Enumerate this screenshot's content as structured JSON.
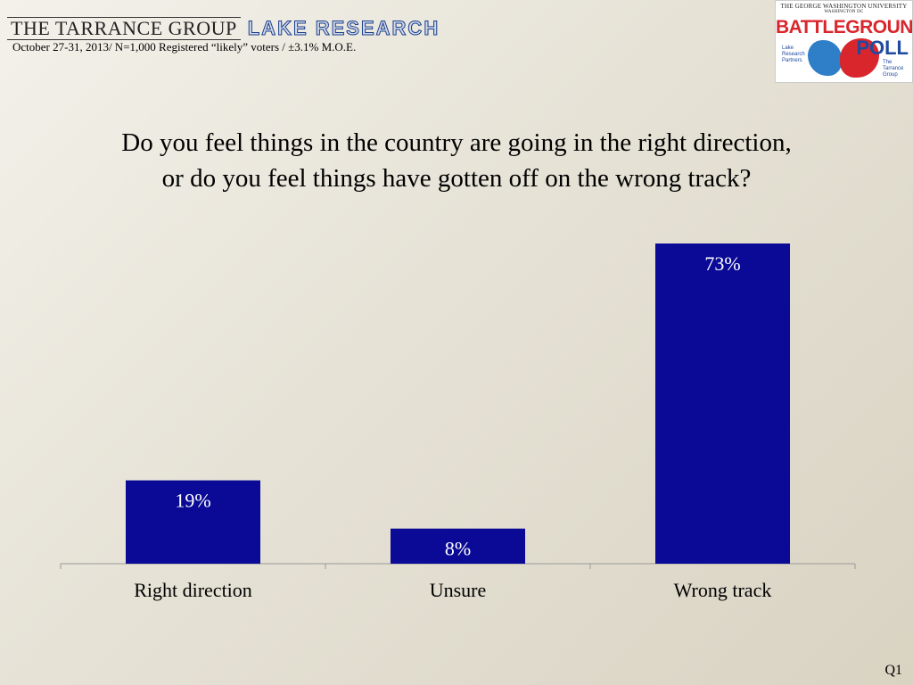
{
  "header": {
    "org1": "THE TARRANCE GROUP",
    "org2": "LAKE RESEARCH",
    "subtitle": "October 27-31, 2013/ N=1,000 Registered “likely” voters / ±3.1% M.O.E."
  },
  "logo": {
    "university": "THE GEORGE WASHINGTON UNIVERSITY",
    "city": "WASHINGTON DC",
    "title1": "BATTLEGROUND",
    "title2": "POLL",
    "left_partner": "Lake Research Partners",
    "right_partner": "The Tarrance Group"
  },
  "question_line1": "Do you feel things in the country are going in the right direction,",
  "question_line2": "or do you feel things have gotten off on the wrong track?",
  "footer_code": "Q1",
  "colors": {
    "bar": "#0a0a96",
    "bar_label": "#ffffff"
  },
  "chart_data": {
    "type": "bar",
    "categories": [
      "Right direction",
      "Unsure",
      "Wrong track"
    ],
    "values": [
      19,
      8,
      73
    ],
    "data_labels": [
      "19%",
      "8%",
      "73%"
    ],
    "ylim": [
      0,
      73
    ],
    "grid": false,
    "legend": "none"
  }
}
